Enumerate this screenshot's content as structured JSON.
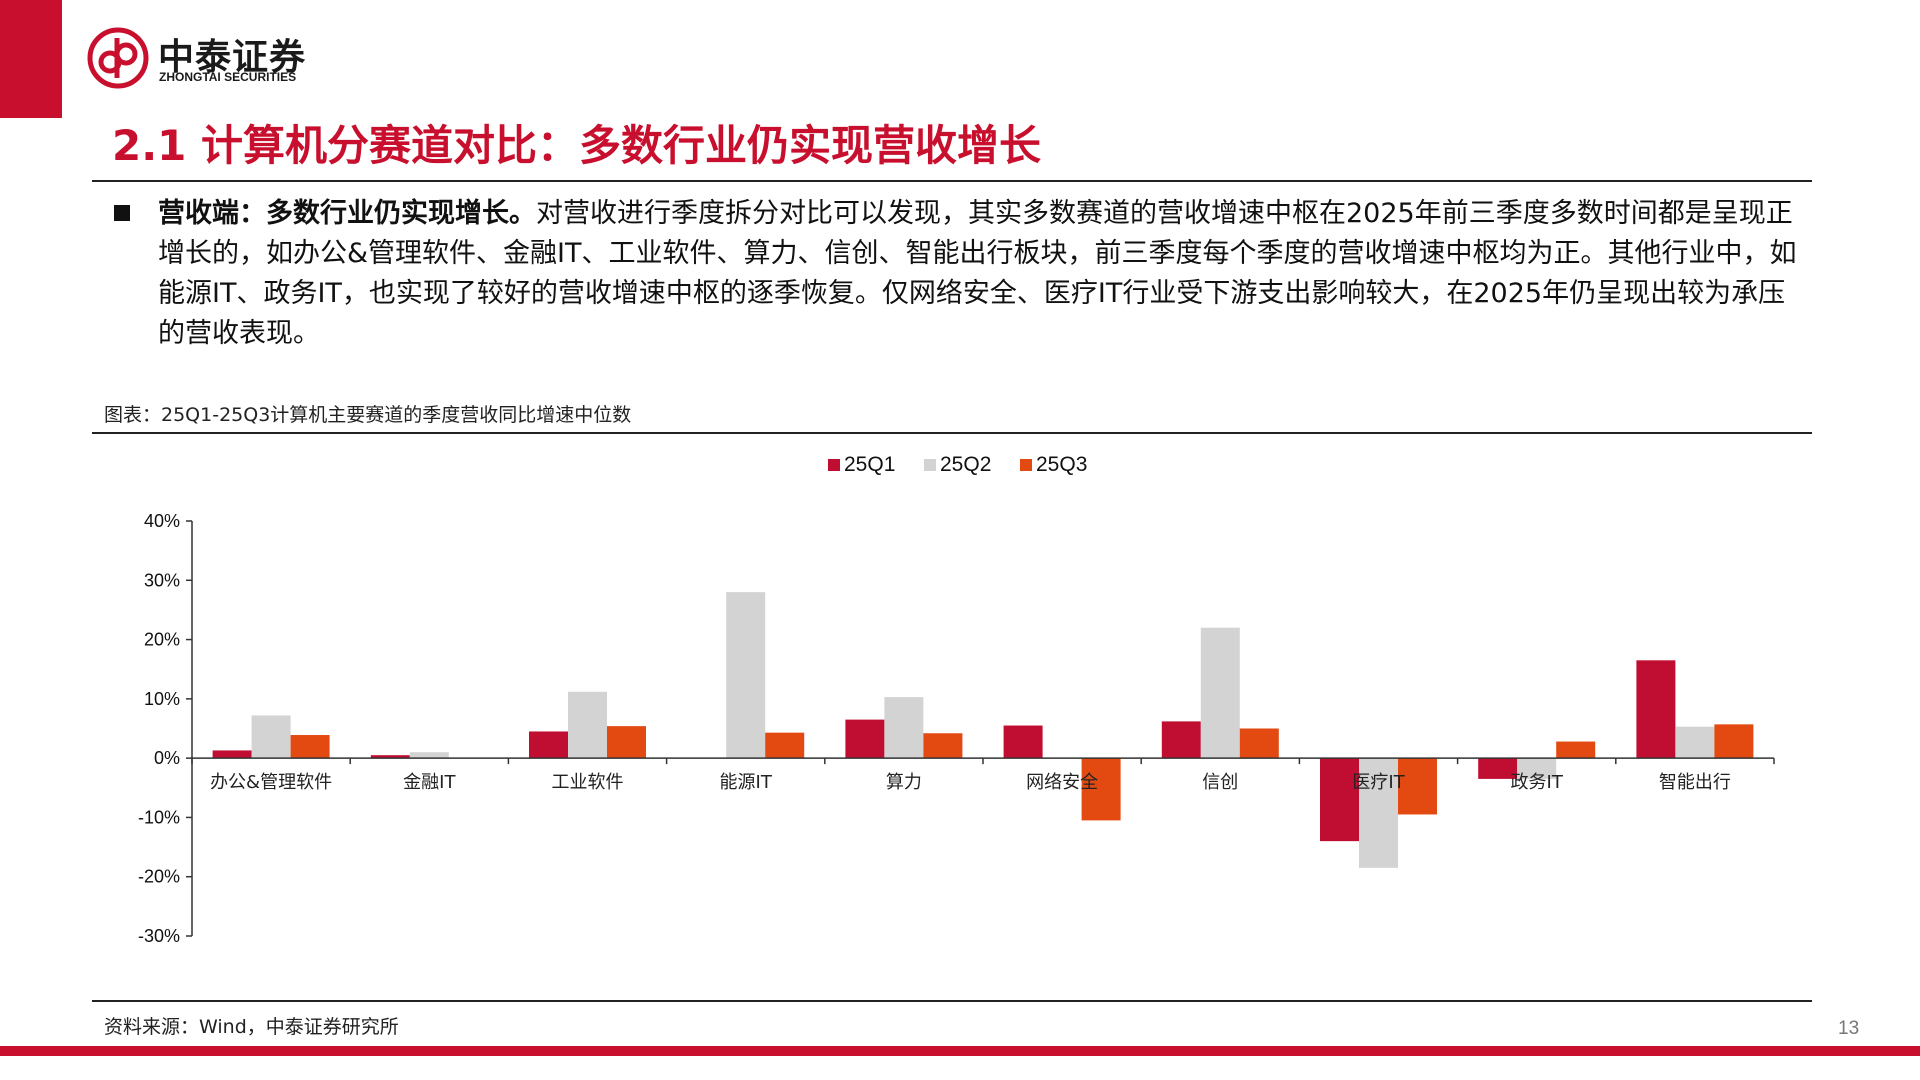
{
  "header": {
    "logo_cn": "中泰证券",
    "logo_en": "ZHONGTAI SECURITIES",
    "title": "2.1 计算机分赛道对比：多数行业仍实现营收增长"
  },
  "body": {
    "lead": "营收端：多数行业仍实现增长。",
    "text": "对营收进行季度拆分对比可以发现，其实多数赛道的营收增速中枢在2025年前三季度多数时间都是呈现正增长的，如办公&管理软件、金融IT、工业软件、算力、信创、智能出行板块，前三季度每个季度的营收增速中枢均为正。其他行业中，如能源IT、政务IT，也实现了较好的营收增速中枢的逐季恢复。仅网络安全、医疗IT行业受下游支出影响较大，在2025年仍呈现出较为承压的营收表现。"
  },
  "figure": {
    "title": "图表：25Q1-25Q3计算机主要赛道的季度营收同比增速中位数",
    "source": "资料来源：Wind，中泰证券研究所"
  },
  "page_number": "13",
  "colors": {
    "brand_red": "#c8102e",
    "q1": "#c00d32",
    "q2": "#d3d3d3",
    "q3": "#e34a12"
  },
  "chart_data": {
    "type": "bar",
    "title": "",
    "xlabel": "",
    "ylabel": "",
    "ylim": [
      -30,
      40
    ],
    "yticks": [
      40,
      30,
      20,
      10,
      0,
      -10,
      -20,
      -30
    ],
    "ytick_labels": [
      "40%",
      "30%",
      "20%",
      "10%",
      "0%",
      "-10%",
      "-20%",
      "-30%"
    ],
    "legend_position": "top-center",
    "grid": false,
    "categories": [
      "办公&管理软件",
      "金融IT",
      "工业软件",
      "能源IT",
      "算力",
      "网络安全",
      "信创",
      "医疗IT",
      "政务IT",
      "智能出行"
    ],
    "series": [
      {
        "name": "25Q1",
        "color": "#c00d32",
        "values": [
          1.3,
          0.5,
          4.5,
          0.0,
          6.5,
          5.5,
          6.2,
          -14.0,
          -3.5,
          16.5
        ]
      },
      {
        "name": "25Q2",
        "color": "#d3d3d3",
        "values": [
          7.2,
          1.0,
          11.2,
          28.0,
          10.3,
          0.0,
          22.0,
          -18.5,
          -3.5,
          5.3
        ]
      },
      {
        "name": "25Q3",
        "color": "#e34a12",
        "values": [
          3.9,
          0.0,
          5.4,
          4.3,
          4.2,
          -10.5,
          5.0,
          -9.5,
          2.8,
          5.7
        ]
      }
    ]
  }
}
